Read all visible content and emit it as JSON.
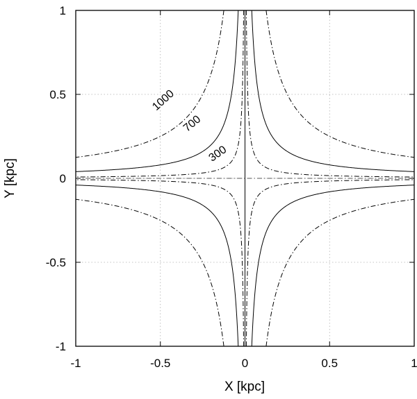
{
  "chart_data": {
    "type": "line",
    "xlabel": "X [kpc]",
    "ylabel": "Y [kpc]",
    "xlim": [
      -1,
      1
    ],
    "ylim": [
      -1,
      1
    ],
    "grid": true,
    "x_ticks": [
      {
        "value": -1,
        "label": "-1"
      },
      {
        "value": -0.5,
        "label": "-0.5"
      },
      {
        "value": 0,
        "label": "0"
      },
      {
        "value": 0.5,
        "label": "0.5"
      },
      {
        "value": 1,
        "label": "1"
      }
    ],
    "y_ticks": [
      {
        "value": -1,
        "label": "-1"
      },
      {
        "value": -0.5,
        "label": "-0.5"
      },
      {
        "value": 0,
        "label": "0"
      },
      {
        "value": 0.5,
        "label": "0.5"
      },
      {
        "value": 1,
        "label": "1"
      }
    ],
    "series": [
      {
        "label": "300",
        "curve": "|x·y| = const",
        "const": 0.008,
        "style": "dashdot",
        "color": "#000000",
        "label_at": {
          "x": -0.15,
          "y": 0.13
        },
        "label_angle_deg": -35
      },
      {
        "label": "700",
        "curve": "|x·y| = const",
        "const": 0.04,
        "style": "solid",
        "color": "#000000",
        "label_at": {
          "x": -0.3,
          "y": 0.31
        },
        "label_angle_deg": -40
      },
      {
        "label": "1000",
        "curve": "|x·y| = const",
        "const": 0.125,
        "style": "dashdot",
        "color": "#000000",
        "label_at": {
          "x": -0.47,
          "y": 0.45
        },
        "label_angle_deg": -42
      }
    ],
    "extra_lines": [
      {
        "name": "x-zero-line",
        "x": 0,
        "style": "solid"
      },
      {
        "name": "y-zero-line",
        "y": 0,
        "style": "dashdot"
      }
    ]
  }
}
